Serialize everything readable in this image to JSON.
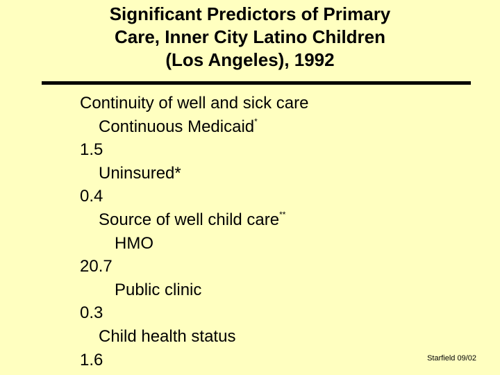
{
  "slide": {
    "title_lines": [
      "Significant Predictors of Primary",
      "Care, Inner City Latino Children",
      "(Los Angeles), 1992"
    ],
    "rows": [
      {
        "text": "Continuity of well and sick care"
      },
      {
        "text": "Continuous Medicaid",
        "sup": "*"
      },
      {
        "text": "1.5"
      },
      {
        "text": "Uninsured*"
      },
      {
        "text": "0.4"
      },
      {
        "text": "Source of well child care",
        "sup": "**"
      },
      {
        "text": "HMO"
      },
      {
        "text": "20.7"
      },
      {
        "text": "Public clinic"
      },
      {
        "text": "0.3"
      },
      {
        "text": "Child health status"
      },
      {
        "text": "1.6"
      }
    ],
    "footer": "Starfield 09/02"
  }
}
